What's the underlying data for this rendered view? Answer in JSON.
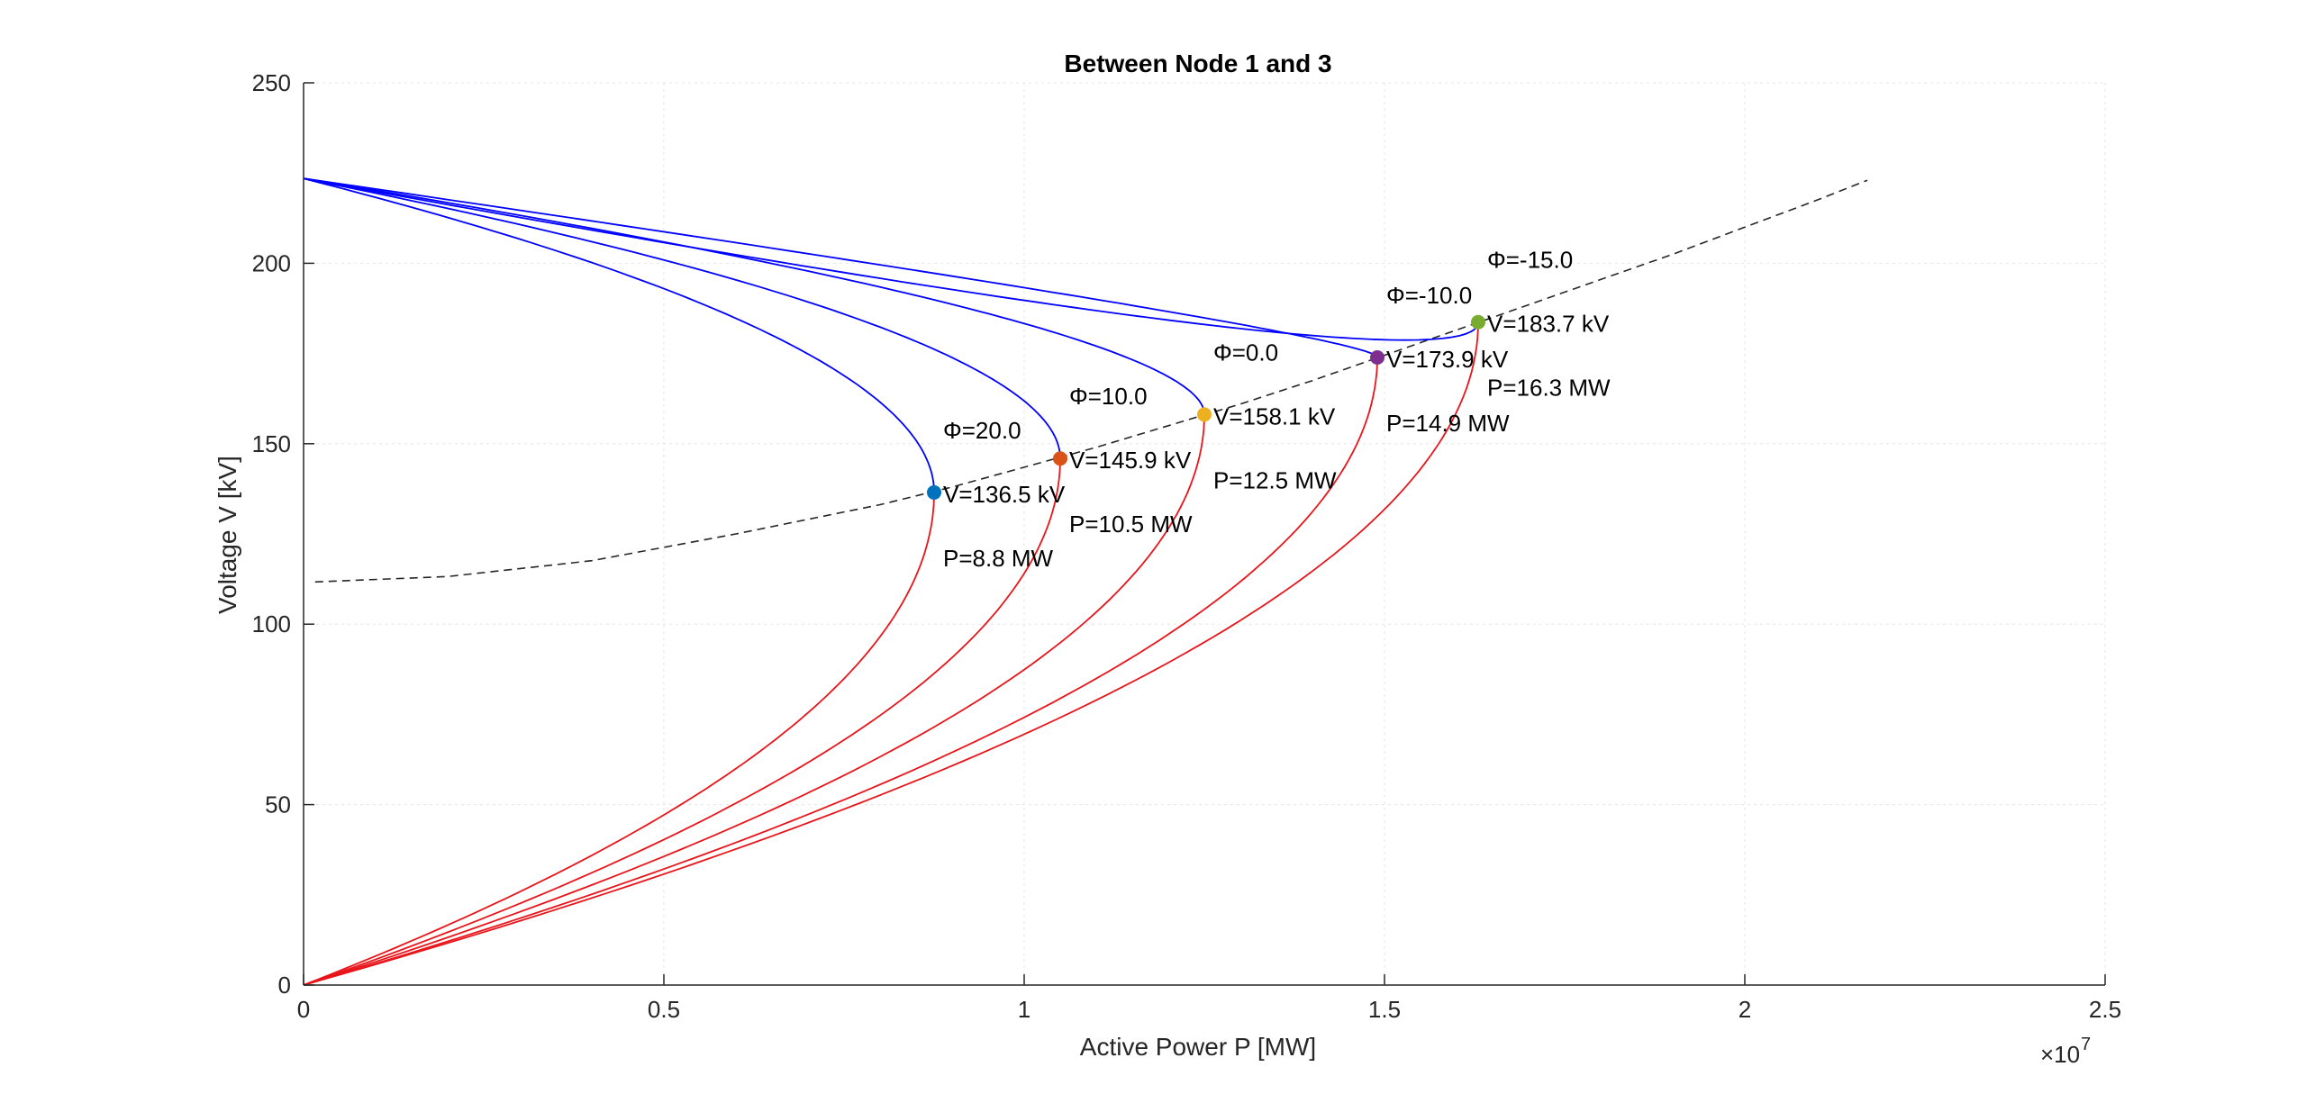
{
  "chart_data": {
    "type": "line",
    "title": "Between Node 1 and 3",
    "xlabel": "Active Power P [MW]",
    "ylabel": "Voltage V [kV]",
    "x_multiplier_label": "×10",
    "x_multiplier_exp": "7",
    "xlim": [
      0,
      2.5
    ],
    "ylim": [
      0,
      250
    ],
    "xticks": [
      0,
      0.5,
      1,
      1.5,
      2,
      2.5
    ],
    "xtick_labels": [
      "0",
      "0.5",
      "1",
      "1.5",
      "2",
      "2.5"
    ],
    "yticks": [
      0,
      50,
      100,
      150,
      200,
      250
    ],
    "ytick_labels": [
      "0",
      "50",
      "100",
      "150",
      "200",
      "250"
    ],
    "grid": true,
    "source_voltage_kv": 223.5,
    "colors": {
      "upper_branch": "#0000ff",
      "lower_branch": "#e8151b",
      "locus": "#262626",
      "axis": "#262626",
      "grid": "#e6e6e6"
    },
    "critical_locus": {
      "style": "dashed",
      "points": [
        [
          0.016,
          111.7
        ],
        [
          0.2,
          113.2
        ],
        [
          0.4,
          117.6
        ],
        [
          0.6,
          125.0
        ],
        [
          0.8,
          133.1
        ],
        [
          0.9,
          138.0
        ],
        [
          1.0,
          143.5
        ],
        [
          1.1,
          149.0
        ],
        [
          1.2,
          155.0
        ],
        [
          1.3,
          161.0
        ],
        [
          1.4,
          167.5
        ],
        [
          1.5,
          174.5
        ],
        [
          1.6,
          181.5
        ],
        [
          1.7,
          188.5
        ],
        [
          1.8,
          195.5
        ],
        [
          1.9,
          202.5
        ],
        [
          2.0,
          210.0
        ],
        [
          2.1,
          217.5
        ],
        [
          2.17,
          223.0
        ]
      ]
    },
    "series": [
      {
        "phi_label": "Φ=20.0",
        "v_label": "V=136.5 kV",
        "p_label": "P=8.8 MW",
        "pmax": 0.875,
        "vcrit": 136.5,
        "vtop_peak": 223.6,
        "point_color": "#0072bd"
      },
      {
        "phi_label": "Φ=10.0",
        "v_label": "V=145.9 kV",
        "p_label": "P=10.5 MW",
        "pmax": 1.05,
        "vcrit": 145.9,
        "vtop_peak": 223.8,
        "point_color": "#d95319"
      },
      {
        "phi_label": "Φ=0.0",
        "v_label": "V=158.1 kV",
        "p_label": "P=12.5 MW",
        "pmax": 1.25,
        "vcrit": 158.1,
        "vtop_peak": 224.5,
        "point_color": "#edb120"
      },
      {
        "phi_label": "Φ=-10.0",
        "v_label": "V=173.9 kV",
        "p_label": "P=14.9 MW",
        "pmax": 1.49,
        "vcrit": 173.9,
        "vtop_peak": 226.5,
        "point_color": "#7e2f8e"
      },
      {
        "phi_label": "Φ=-15.0",
        "v_label": "V=183.7 kV",
        "p_label": "P=16.3 MW",
        "pmax": 1.63,
        "vcrit": 183.7,
        "vtop_peak": 231.5,
        "point_color": "#77ac30"
      }
    ]
  }
}
